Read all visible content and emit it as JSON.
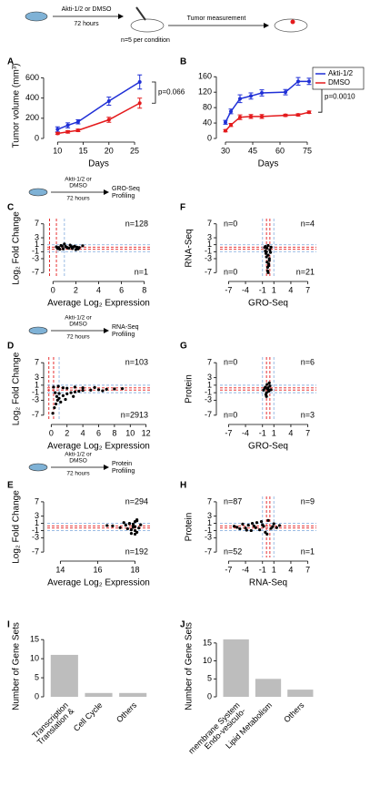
{
  "schematic": {
    "treatment": "Akti-1/2 or DMSO",
    "duration": "72 hours",
    "n": "n=5 per condition",
    "measurement": "Tumor measurement"
  },
  "chart_data": [
    {
      "type": "line",
      "panel": "A",
      "xlabel": "Days",
      "ylabel": "Tumor volume (mm³)",
      "x": [
        10,
        12,
        14,
        20,
        26
      ],
      "series": [
        {
          "name": "Akti-1/2",
          "color": "#1f2fd6",
          "values": [
            90,
            130,
            165,
            370,
            560
          ],
          "errors": [
            25,
            25,
            20,
            40,
            70
          ]
        },
        {
          "name": "DMSO",
          "color": "#e41a1c",
          "values": [
            50,
            65,
            80,
            185,
            350
          ],
          "errors": [
            10,
            12,
            12,
            25,
            50
          ]
        }
      ],
      "xlim": [
        8,
        28
      ],
      "xticks": [
        10,
        15,
        20,
        25
      ],
      "ylim": [
        0,
        650
      ],
      "yticks": [
        0,
        200,
        400,
        600
      ],
      "pvalue": "p=0.066"
    },
    {
      "type": "line",
      "panel": "B",
      "xlabel": "Days",
      "x": [
        30,
        33,
        38,
        44,
        50,
        63,
        70,
        76
      ],
      "series": [
        {
          "name": "Akti-1/2",
          "color": "#1f2fd6",
          "values": [
            42,
            70,
            103,
            110,
            118,
            120,
            148,
            148
          ],
          "errors": [
            5,
            6,
            10,
            8,
            8,
            7,
            10,
            8
          ]
        },
        {
          "name": "DMSO",
          "color": "#e41a1c",
          "values": [
            20,
            35,
            55,
            57,
            57,
            60,
            61,
            68
          ],
          "errors": [
            3,
            4,
            6,
            5,
            5,
            3,
            3,
            3
          ]
        }
      ],
      "xlim": [
        27,
        80
      ],
      "xticks": [
        30,
        45,
        60,
        75
      ],
      "ylim": [
        0,
        170
      ],
      "yticks": [
        0,
        40,
        80,
        120,
        160
      ],
      "pvalue": "p=0.0010",
      "legend": "top-right"
    },
    {
      "type": "scatter",
      "panel": "C",
      "xlabel": "Average Log₂ Expression",
      "ylabel": "Log₂ Fold Change",
      "protocol": {
        "treatment": [
          "Akti-1/2 or",
          "DMSO"
        ],
        "duration": "72 hours",
        "assay": [
          "GRO-Seq",
          "Profiling"
        ]
      },
      "x": [
        0.3,
        0.5,
        0.7,
        0.9,
        1.1,
        1.3,
        1.5,
        1.7,
        1.9,
        2.1,
        2.3,
        2.6,
        0.6,
        1.0,
        1.4,
        1.8,
        2.0,
        1.2,
        0.4,
        0.8,
        1.6,
        2.2
      ],
      "y": [
        0.4,
        0.2,
        0.8,
        -0.2,
        0.5,
        0.1,
        0.9,
        -0.1,
        0.6,
        0.3,
        0.2,
        0.7,
        -0.3,
        1.2,
        0.0,
        0.4,
        -0.4,
        0.3,
        -0.1,
        0.6,
        0.5,
        -0.2
      ],
      "xlim": [
        -0.5,
        8.5
      ],
      "xticks": [
        0,
        2,
        4,
        6,
        8
      ],
      "ylim": [
        -8.5,
        8.5
      ],
      "yticks": [
        7,
        3,
        1,
        -1,
        -3,
        -7
      ],
      "reference_lines": [
        {
          "value": 0.3,
          "color": "#e41a1c"
        },
        {
          "value": -0.3,
          "color": "#e41a1c"
        },
        {
          "value": 1,
          "color": "#8fb3e0"
        },
        {
          "value": -1,
          "color": "#8fb3e0"
        }
      ],
      "annotations": [
        {
          "text": "n=128",
          "position": "top-right"
        },
        {
          "text": "n=1",
          "position": "bottom-right"
        }
      ]
    },
    {
      "type": "scatter",
      "panel": "D",
      "xlabel": "Average Log₂ Expression",
      "ylabel": "Log₂ Fold Change",
      "protocol": {
        "treatment": [
          "Akti-1/2 or",
          "DMSO"
        ],
        "duration": "72 hours",
        "assay": [
          "RNA-Seq",
          "Profiling"
        ]
      },
      "x": [
        0.2,
        0.4,
        0.6,
        0.8,
        1,
        1.5,
        2,
        2.5,
        3,
        3.5,
        4,
        5,
        6,
        7,
        8,
        9,
        0.5,
        1,
        1.5,
        2,
        3,
        4,
        0.3,
        0.7,
        1.2,
        2.8,
        5.5,
        6.5,
        0.9,
        1.8
      ],
      "y": [
        -6.5,
        -5,
        -4,
        -3,
        -2.5,
        -1.8,
        -1.3,
        -1,
        -0.8,
        -0.6,
        -0.4,
        -0.3,
        -0.2,
        -0.1,
        0,
        0.1,
        -1,
        -1.2,
        0.3,
        0.2,
        0.5,
        0.3,
        0.5,
        -2,
        -3.5,
        -2,
        0.4,
        -0.5,
        0.7,
        -2.8
      ],
      "xlim": [
        -0.5,
        12.5
      ],
      "xticks": [
        0,
        2,
        4,
        6,
        8,
        10,
        12
      ],
      "ylim": [
        -8.5,
        8.5
      ],
      "yticks": [
        7,
        3,
        1,
        -1,
        -3,
        -7
      ],
      "reference_lines": [
        {
          "value": 0.3,
          "color": "#e41a1c"
        },
        {
          "value": -0.3,
          "color": "#e41a1c"
        },
        {
          "value": 1,
          "color": "#8fb3e0"
        },
        {
          "value": -1,
          "color": "#8fb3e0"
        }
      ],
      "annotations": [
        {
          "text": "n=103",
          "position": "top-right"
        },
        {
          "text": "n=2913",
          "position": "bottom-right"
        }
      ]
    },
    {
      "type": "scatter",
      "panel": "E",
      "xlabel": "Average Log₂ Expression",
      "ylabel": "Log₂ Fold Change",
      "protocol": {
        "treatment": [
          "Akti-1/2 or",
          "DMSO"
        ],
        "duration": "72 hours",
        "assay": [
          "Protein",
          "Profiling"
        ]
      },
      "x": [
        17.5,
        17.8,
        18,
        18.1,
        17.9,
        18.2,
        17.7,
        18,
        17.6,
        18.1,
        17.9,
        18,
        16.8,
        17.2,
        18.3,
        17.4,
        18,
        17.8,
        16.5,
        18.1,
        17.9,
        17.7
      ],
      "y": [
        0.5,
        -0.8,
        1.5,
        -1.5,
        0.2,
        -0.3,
        1.0,
        -2.0,
        -0.5,
        2.0,
        0.8,
        -1.0,
        0.3,
        -0.2,
        0.6,
        1.2,
        0.1,
        -1.8,
        0.4,
        1.7,
        -0.1,
        0.9
      ],
      "xlim": [
        13.3,
        18.8
      ],
      "xticks": [
        14,
        16,
        18
      ],
      "ylim": [
        -8.5,
        8.5
      ],
      "yticks": [
        7,
        3,
        1,
        -1,
        -3,
        -7
      ],
      "reference_lines": [
        {
          "value": 0.3,
          "color": "#e41a1c"
        },
        {
          "value": -0.3,
          "color": "#e41a1c"
        },
        {
          "value": 1,
          "color": "#8fb3e0"
        },
        {
          "value": -1,
          "color": "#8fb3e0"
        }
      ],
      "annotations": [
        {
          "text": "n=294",
          "position": "top-right"
        },
        {
          "text": "n=192",
          "position": "bottom-right"
        }
      ]
    },
    {
      "type": "scatter",
      "panel": "F",
      "xlabel": "GRO-Seq",
      "ylabel": "RNA-Seq",
      "x": [
        -0.5,
        -0.3,
        0,
        0.2,
        -0.6,
        -0.2,
        0.1,
        -0.4,
        0.3,
        -0.1,
        0,
        -0.3,
        0.2,
        -0.5,
        0.1,
        -0.2,
        0.4,
        -0.1,
        0.5,
        0
      ],
      "y": [
        0.5,
        -1,
        -2,
        -3,
        0.2,
        -4,
        -5,
        -1.5,
        -0.5,
        -6.5,
        0.8,
        -2.5,
        -3.5,
        -0.8,
        -4.5,
        0,
        -1.2,
        -5.5,
        0.3,
        -7
      ],
      "xlim": [
        -8.5,
        8.5
      ],
      "xticks": [
        -7,
        -4,
        -1,
        1,
        4,
        7
      ],
      "ylim": [
        -8.5,
        8.5
      ],
      "yticks": [
        7,
        3,
        1,
        -1,
        -3,
        -7
      ],
      "reference_lines": [
        {
          "value": 0.3,
          "color": "#e41a1c"
        },
        {
          "value": -0.3,
          "color": "#e41a1c"
        },
        {
          "value": 1,
          "color": "#8fb3e0"
        },
        {
          "value": -1,
          "color": "#8fb3e0"
        }
      ],
      "annotations": [
        {
          "text": "n=0",
          "position": "top-left"
        },
        {
          "text": "n=4",
          "position": "top-right"
        },
        {
          "text": "n=0",
          "position": "bottom-left"
        },
        {
          "text": "n=21",
          "position": "bottom-right"
        }
      ]
    },
    {
      "type": "scatter",
      "panel": "G",
      "xlabel": "GRO-Seq",
      "ylabel": "Protein",
      "x": [
        -0.5,
        -0.3,
        0,
        0.2,
        -0.6,
        -0.2,
        0.1,
        -0.4,
        0.3,
        -0.1,
        0.5,
        -0.8,
        0.2,
        -0.3
      ],
      "y": [
        0.5,
        -1,
        0.3,
        -0.4,
        0.2,
        1.2,
        -0.6,
        -1.5,
        0.8,
        0,
        -0.2,
        -0.3,
        1.6,
        -2
      ],
      "xlim": [
        -8.5,
        8.5
      ],
      "xticks": [
        -7,
        -4,
        -1,
        1,
        4,
        7
      ],
      "ylim": [
        -8.5,
        8.5
      ],
      "yticks": [
        7,
        3,
        1,
        -1,
        -3,
        -7
      ],
      "reference_lines": [
        {
          "value": 0.3,
          "color": "#e41a1c"
        },
        {
          "value": -0.3,
          "color": "#e41a1c"
        },
        {
          "value": 1,
          "color": "#8fb3e0"
        },
        {
          "value": -1,
          "color": "#8fb3e0"
        }
      ],
      "annotations": [
        {
          "text": "n=0",
          "position": "top-left"
        },
        {
          "text": "n=6",
          "position": "top-right"
        },
        {
          "text": "n=0",
          "position": "bottom-left"
        },
        {
          "text": "n=3",
          "position": "bottom-right"
        }
      ]
    },
    {
      "type": "scatter",
      "panel": "H",
      "xlabel": "RNA-Seq",
      "ylabel": "Protein",
      "x": [
        -6,
        -5,
        -4.5,
        -4,
        -3.5,
        -3,
        -2.5,
        -2,
        -1.5,
        -1,
        -0.5,
        0,
        0.5,
        1,
        1.5,
        2,
        -3.8,
        -2.2,
        -1.2,
        -0.2,
        0.8,
        -5.5,
        -2.8,
        -0.8
      ],
      "y": [
        0.2,
        -0.5,
        0.8,
        -0.3,
        0.5,
        -1,
        0.3,
        1.2,
        -0.8,
        0.6,
        -1.5,
        1.8,
        -0.4,
        0.9,
        -0.2,
        0.4,
        -0.9,
        -0.2,
        1.5,
        -2,
        0.1,
        -0.1,
        1,
        0.2
      ],
      "xlim": [
        -8.5,
        8.5
      ],
      "xticks": [
        -7,
        -4,
        -1,
        1,
        4,
        7
      ],
      "ylim": [
        -8.5,
        8.5
      ],
      "yticks": [
        7,
        3,
        1,
        -1,
        -3,
        -7
      ],
      "reference_lines": [
        {
          "value": 0.3,
          "color": "#e41a1c"
        },
        {
          "value": -0.3,
          "color": "#e41a1c"
        },
        {
          "value": 1,
          "color": "#8fb3e0"
        },
        {
          "value": -1,
          "color": "#8fb3e0"
        }
      ],
      "annotations": [
        {
          "text": "n=87",
          "position": "top-left"
        },
        {
          "text": "n=9",
          "position": "top-right"
        },
        {
          "text": "n=52",
          "position": "bottom-left"
        },
        {
          "text": "n=1",
          "position": "bottom-right"
        }
      ]
    },
    {
      "type": "bar",
      "panel": "I",
      "ylabel": "Number of Gene Sets",
      "categories": [
        [
          "Translation &",
          "Transcription"
        ],
        [
          "Cell Cycle"
        ],
        [
          "Others"
        ]
      ],
      "values": [
        11,
        1,
        1
      ],
      "color": "#bdbdbd",
      "ylim": [
        0,
        16
      ],
      "yticks": [
        0,
        5,
        10,
        15
      ]
    },
    {
      "type": "bar",
      "panel": "J",
      "ylabel": "Number of Gene Sets",
      "categories": [
        [
          "Endo-vesiculo-",
          "membrane System"
        ],
        [
          "Lipid Metabolism"
        ],
        [
          "Others"
        ]
      ],
      "values": [
        16,
        5,
        2
      ],
      "color": "#bdbdbd",
      "ylim": [
        0,
        17
      ],
      "yticks": [
        0,
        5,
        10,
        15
      ]
    }
  ]
}
